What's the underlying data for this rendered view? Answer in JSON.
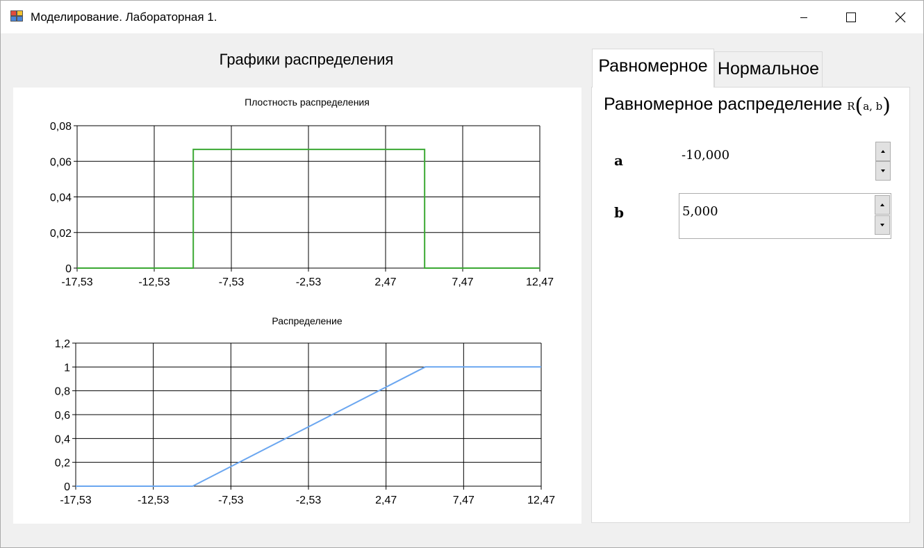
{
  "window": {
    "title": "Моделирование. Лабораторная 1."
  },
  "main": {
    "heading": "Графики распределения"
  },
  "charts": {
    "density": {
      "title": "Плостность распределения"
    },
    "cdf": {
      "title": "Распределение"
    }
  },
  "tabs": [
    {
      "label": "Равномерное",
      "active": true
    },
    {
      "label": "Нормальное",
      "active": false
    }
  ],
  "panel": {
    "heading": "Равномерное распределение",
    "formula_symbol": "R",
    "formula_args": "a, b",
    "params": [
      {
        "label": "a",
        "value": "-10,000"
      },
      {
        "label": "b",
        "value": "5,000"
      }
    ]
  },
  "colors": {
    "density_line": "#3aa832",
    "cdf_line": "#6aa6f0",
    "grid": "#000000",
    "panel_bg": "#ffffff",
    "window_bg": "#f0f0f0"
  },
  "chart_data": [
    {
      "type": "line",
      "title": "Плостность распределения",
      "xlim": [
        -17.53,
        12.47
      ],
      "ylim": [
        0,
        0.08
      ],
      "x_ticks": [
        -17.53,
        -12.53,
        -7.53,
        -2.53,
        2.47,
        7.47,
        12.47
      ],
      "x_tick_labels": [
        "-17,53",
        "-12,53",
        "-7,53",
        "-2,53",
        "2,47",
        "7,47",
        "12,47"
      ],
      "y_ticks": [
        0,
        0.02,
        0.04,
        0.06,
        0.08
      ],
      "y_tick_labels": [
        "0",
        "0,02",
        "0,04",
        "0,06",
        "0,08"
      ],
      "grid": true,
      "series": [
        {
          "color": "#3aa832",
          "x": [
            -17.53,
            -10.0,
            -10.0,
            5.0,
            5.0,
            12.47
          ],
          "y": [
            0,
            0,
            0.0667,
            0.0667,
            0,
            0
          ]
        }
      ]
    },
    {
      "type": "line",
      "title": "Распределение",
      "xlim": [
        -17.53,
        12.47
      ],
      "ylim": [
        0,
        1.2
      ],
      "x_ticks": [
        -17.53,
        -12.53,
        -7.53,
        -2.53,
        2.47,
        7.47,
        12.47
      ],
      "x_tick_labels": [
        "-17,53",
        "-12,53",
        "-7,53",
        "-2,53",
        "2,47",
        "7,47",
        "12,47"
      ],
      "y_ticks": [
        0,
        0.2,
        0.4,
        0.6,
        0.8,
        1,
        1.2
      ],
      "y_tick_labels": [
        "0",
        "0,2",
        "0,4",
        "0,6",
        "0,8",
        "1",
        "1,2"
      ],
      "grid": true,
      "series": [
        {
          "color": "#6aa6f0",
          "x": [
            -17.53,
            -10.0,
            5.0,
            12.47
          ],
          "y": [
            0,
            0,
            1,
            1
          ]
        }
      ]
    }
  ]
}
